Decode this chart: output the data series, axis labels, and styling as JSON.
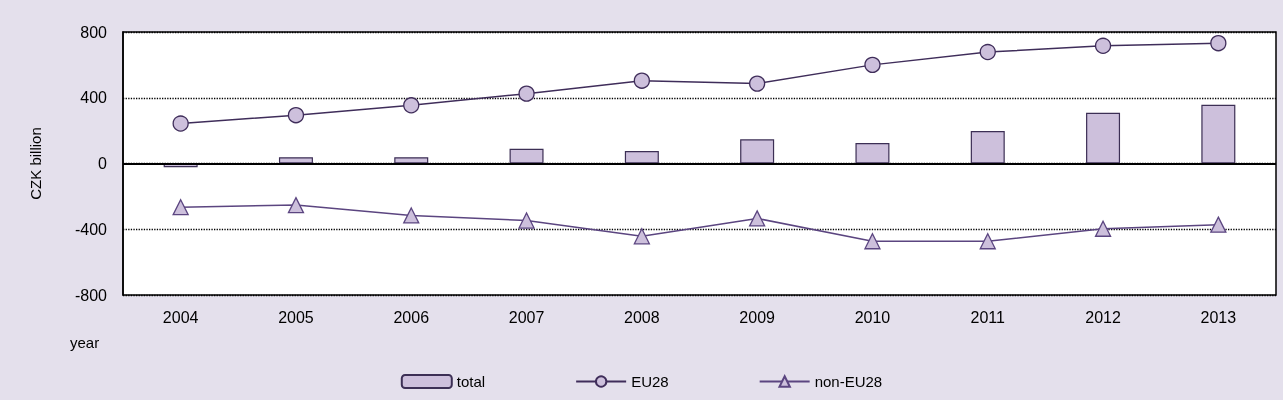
{
  "chart_data": {
    "type": "bar",
    "ylabel": "CZK billion",
    "xlabel": "year",
    "categories": [
      "2004",
      "2005",
      "2006",
      "2007",
      "2008",
      "2009",
      "2010",
      "2011",
      "2012",
      "2013"
    ],
    "series": [
      {
        "name": "total",
        "color": "#cdc0dc",
        "values": [
          -23,
          38,
          38,
          89,
          76,
          147,
          124,
          197,
          309,
          357
        ]
      },
      {
        "name": "EU28",
        "type": "line",
        "color": "#3f2d5a",
        "marker": "circle",
        "values": [
          243,
          294,
          354,
          425,
          504,
          486,
          600,
          678,
          716,
          732
        ]
      },
      {
        "name": "non-EU28",
        "type": "line",
        "color": "#5b4580",
        "marker": "triangle",
        "values": [
          -266,
          -253,
          -316,
          -347,
          -443,
          -334,
          -473,
          -473,
          -397,
          -372
        ]
      }
    ],
    "ylim": [
      -800,
      800
    ],
    "yticks": [
      -800,
      -400,
      0,
      400,
      800
    ],
    "grid": "y",
    "legend": "bottom",
    "line_style": "solid"
  }
}
